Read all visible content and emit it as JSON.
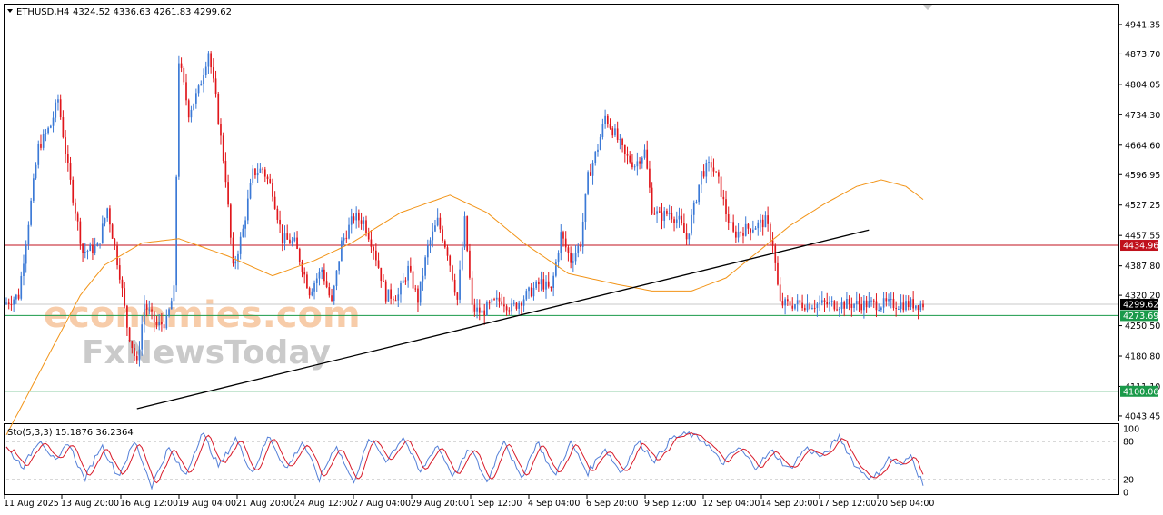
{
  "header": {
    "symbol": "ETHUSD,H4",
    "ohlc": "4324.52 4336.63 4261.83 4299.62"
  },
  "stoch_label": "Sto(5,3,3) 15.1876 36.2364",
  "watermark": {
    "line1": "economies.com",
    "line2": "FxNewsToday"
  },
  "colors": {
    "bull": "#3b79d6",
    "bear": "#e0161b",
    "ma": "#f29418",
    "resistance": "#c0121c",
    "support": "#1a9a4a",
    "trendline": "#000000",
    "stoch_main": "#5580d8",
    "stoch_signal": "#d81b2a"
  },
  "chart_data": {
    "type": "candlestick",
    "symbol": "ETHUSD",
    "timeframe": "H4",
    "price_ticks": [
      4941.35,
      4873.7,
      4804.05,
      4734.3,
      4664.6,
      4596.95,
      4527.25,
      4457.55,
      4387.8,
      4320.2,
      4250.5,
      4180.8,
      4111.1,
      4043.45
    ],
    "ylim": [
      4035,
      4985
    ],
    "x_labels": [
      "11 Aug 2025",
      "13 Aug 20:00",
      "16 Aug 12:00",
      "19 Aug 04:00",
      "21 Aug 20:00",
      "24 Aug 12:00",
      "27 Aug 04:00",
      "29 Aug 20:00",
      "1 Sep 12:00",
      "4 Sep 04:00",
      "6 Sep 20:00",
      "9 Sep 12:00",
      "12 Sep 04:00",
      "14 Sep 20:00",
      "17 Sep 12:00",
      "20 Sep 04:00"
    ],
    "current_price": 4299.62,
    "levels": [
      {
        "name": "resistance",
        "value": 4434.96,
        "label": "4434.96"
      },
      {
        "name": "support",
        "value": 4273.69,
        "label": "4273.69"
      },
      {
        "name": "support-lower",
        "value": 4100.06,
        "label": "4100.06"
      }
    ],
    "current_label": "4299.62",
    "trendline": {
      "from": {
        "candle": 53,
        "price": 4060
      },
      "to": {
        "candle": 350,
        "price": 4470
      }
    },
    "ma_anchors": [
      [
        0,
        4000
      ],
      [
        30,
        4320
      ],
      [
        40,
        4390
      ],
      [
        55,
        4440
      ],
      [
        70,
        4450
      ],
      [
        90,
        4410
      ],
      [
        108,
        4365
      ],
      [
        125,
        4400
      ],
      [
        140,
        4440
      ],
      [
        160,
        4510
      ],
      [
        180,
        4550
      ],
      [
        195,
        4510
      ],
      [
        210,
        4440
      ],
      [
        228,
        4370
      ],
      [
        248,
        4345
      ],
      [
        262,
        4330
      ],
      [
        278,
        4330
      ],
      [
        292,
        4360
      ],
      [
        305,
        4420
      ],
      [
        318,
        4480
      ],
      [
        332,
        4530
      ],
      [
        345,
        4570
      ],
      [
        355,
        4585
      ],
      [
        365,
        4570
      ],
      [
        372,
        4540
      ]
    ],
    "price_anchors": [
      [
        0,
        4300
      ],
      [
        6,
        4320
      ],
      [
        10,
        4490
      ],
      [
        14,
        4660
      ],
      [
        19,
        4710
      ],
      [
        22,
        4770
      ],
      [
        26,
        4610
      ],
      [
        32,
        4420
      ],
      [
        38,
        4430
      ],
      [
        42,
        4520
      ],
      [
        47,
        4370
      ],
      [
        50,
        4250
      ],
      [
        54,
        4160
      ],
      [
        57,
        4300
      ],
      [
        62,
        4250
      ],
      [
        66,
        4260
      ],
      [
        69,
        4330
      ],
      [
        71,
        4860
      ],
      [
        75,
        4740
      ],
      [
        79,
        4790
      ],
      [
        83,
        4880
      ],
      [
        86,
        4770
      ],
      [
        90,
        4590
      ],
      [
        93,
        4380
      ],
      [
        97,
        4470
      ],
      [
        101,
        4600
      ],
      [
        105,
        4610
      ],
      [
        109,
        4560
      ],
      [
        113,
        4450
      ],
      [
        118,
        4440
      ],
      [
        124,
        4330
      ],
      [
        129,
        4380
      ],
      [
        133,
        4300
      ],
      [
        137,
        4440
      ],
      [
        142,
        4500
      ],
      [
        146,
        4490
      ],
      [
        150,
        4430
      ],
      [
        155,
        4320
      ],
      [
        160,
        4320
      ],
      [
        164,
        4380
      ],
      [
        168,
        4310
      ],
      [
        172,
        4430
      ],
      [
        176,
        4490
      ],
      [
        180,
        4420
      ],
      [
        184,
        4310
      ],
      [
        187,
        4490
      ],
      [
        190,
        4290
      ],
      [
        194,
        4280
      ],
      [
        198,
        4300
      ],
      [
        202,
        4310
      ],
      [
        206,
        4290
      ],
      [
        210,
        4310
      ],
      [
        214,
        4330
      ],
      [
        218,
        4350
      ],
      [
        222,
        4330
      ],
      [
        226,
        4460
      ],
      [
        230,
        4400
      ],
      [
        234,
        4440
      ],
      [
        237,
        4590
      ],
      [
        241,
        4660
      ],
      [
        244,
        4730
      ],
      [
        248,
        4690
      ],
      [
        252,
        4640
      ],
      [
        256,
        4620
      ],
      [
        260,
        4650
      ],
      [
        263,
        4520
      ],
      [
        266,
        4500
      ],
      [
        270,
        4510
      ],
      [
        274,
        4490
      ],
      [
        277,
        4450
      ],
      [
        280,
        4520
      ],
      [
        283,
        4600
      ],
      [
        287,
        4620
      ],
      [
        290,
        4580
      ],
      [
        293,
        4510
      ],
      [
        296,
        4460
      ],
      [
        300,
        4470
      ],
      [
        305,
        4480
      ],
      [
        309,
        4490
      ],
      [
        312,
        4440
      ],
      [
        314,
        4340
      ],
      [
        315,
        4300
      ]
    ],
    "stoch_anchors": [
      [
        0,
        70
      ],
      [
        6,
        40
      ],
      [
        12,
        85
      ],
      [
        18,
        45
      ],
      [
        22,
        80
      ],
      [
        28,
        20
      ],
      [
        34,
        75
      ],
      [
        40,
        25
      ],
      [
        46,
        80
      ],
      [
        52,
        10
      ],
      [
        58,
        70
      ],
      [
        64,
        25
      ],
      [
        70,
        95
      ],
      [
        76,
        40
      ],
      [
        82,
        85
      ],
      [
        88,
        30
      ],
      [
        94,
        90
      ],
      [
        100,
        35
      ],
      [
        106,
        80
      ],
      [
        112,
        20
      ],
      [
        118,
        75
      ],
      [
        124,
        15
      ],
      [
        130,
        85
      ],
      [
        136,
        50
      ],
      [
        142,
        88
      ],
      [
        148,
        30
      ],
      [
        154,
        75
      ],
      [
        160,
        25
      ],
      [
        166,
        70
      ],
      [
        172,
        15
      ],
      [
        178,
        85
      ],
      [
        184,
        20
      ],
      [
        190,
        80
      ],
      [
        196,
        25
      ],
      [
        202,
        78
      ],
      [
        208,
        30
      ],
      [
        214,
        70
      ],
      [
        220,
        30
      ],
      [
        226,
        80
      ],
      [
        232,
        50
      ],
      [
        238,
        85
      ],
      [
        244,
        92
      ],
      [
        250,
        80
      ],
      [
        256,
        45
      ],
      [
        262,
        70
      ],
      [
        268,
        40
      ],
      [
        274,
        65
      ],
      [
        280,
        35
      ],
      [
        286,
        70
      ],
      [
        292,
        55
      ],
      [
        298,
        88
      ],
      [
        304,
        40
      ],
      [
        310,
        20
      ],
      [
        316,
        55
      ],
      [
        320,
        40
      ],
      [
        324,
        60
      ],
      [
        326,
        30
      ],
      [
        328,
        15
      ]
    ],
    "stoch_levels": [
      80,
      20
    ],
    "stoch_ticks": [
      "100",
      "80",
      "20",
      "0"
    ]
  }
}
